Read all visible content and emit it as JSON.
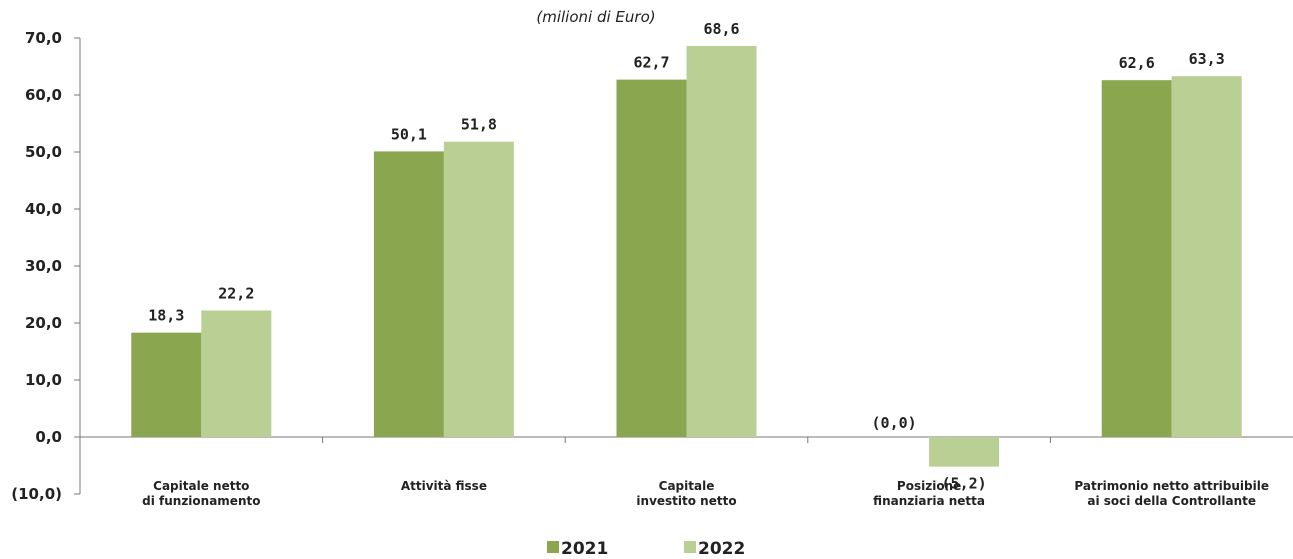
{
  "chart_data": {
    "type": "bar",
    "title": "",
    "subtitle": "(milioni di Euro)",
    "xlabel": "",
    "ylabel": "",
    "ylim": [
      -10,
      70
    ],
    "yticks": [
      -10,
      0,
      10,
      20,
      30,
      40,
      50,
      60,
      70
    ],
    "ytick_labels": [
      "(10,0)",
      "0,0",
      "10,0",
      "20,0",
      "30,0",
      "40,0",
      "50,0",
      "60,0",
      "70,0"
    ],
    "grid": false,
    "legend_position": "bottom-center",
    "categories": [
      [
        "Capitale netto",
        "di funzionamento"
      ],
      [
        "Attività fisse"
      ],
      [
        "Capitale",
        "investito netto"
      ],
      [
        "Posizione",
        "finanziaria netta"
      ],
      [
        "Patrimonio netto attribuibile",
        "ai soci della Controllante"
      ]
    ],
    "series": [
      {
        "name": "2021",
        "color": "#8aa64f",
        "values": [
          18.3,
          50.1,
          62.7,
          -0.01,
          62.6
        ],
        "labels": [
          "18,3",
          "50,1",
          "62,7",
          "(0,0)",
          "62,6"
        ]
      },
      {
        "name": "2022",
        "color": "#b9cf94",
        "values": [
          22.2,
          51.8,
          68.6,
          -5.2,
          63.3
        ],
        "labels": [
          "22,2",
          "51,8",
          "68,6",
          "(5,2)",
          "63,3"
        ]
      }
    ]
  }
}
